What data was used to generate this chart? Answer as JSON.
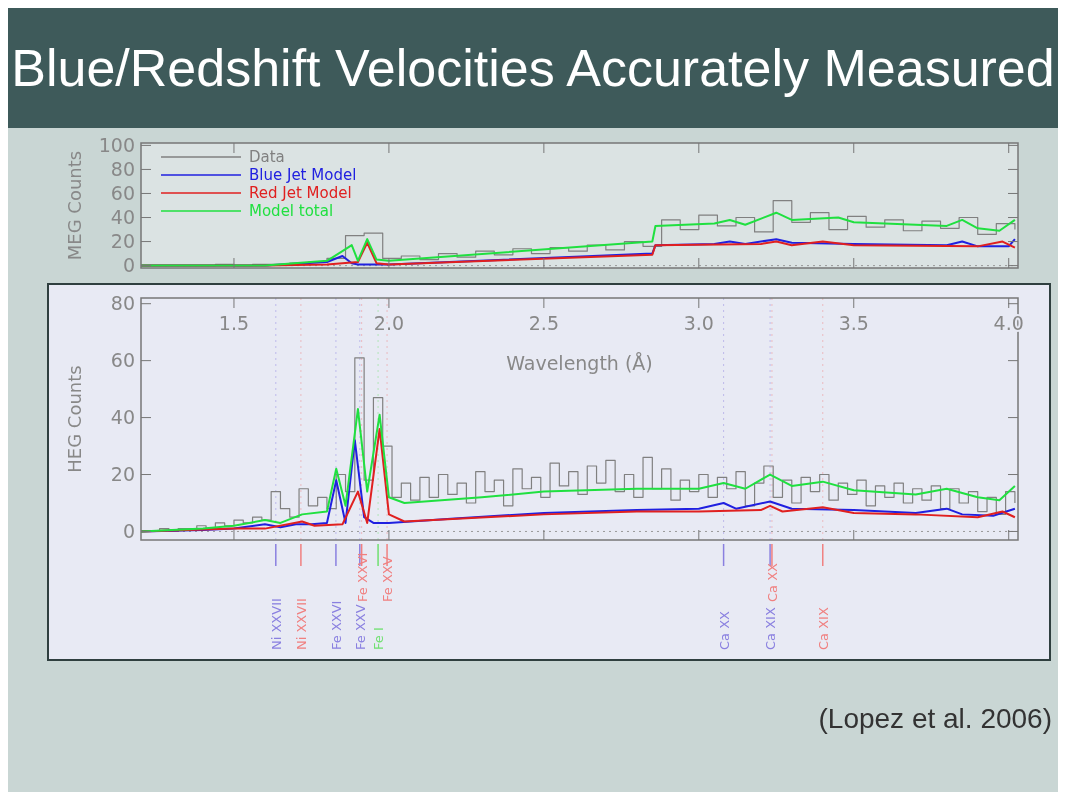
{
  "chart_data": [
    {
      "type": "step",
      "title": "Blue/Redshift Velocities Accurately Measured",
      "ylabel": "MEG Counts",
      "xlim": [
        1.2,
        4.03
      ],
      "ylim": [
        -2,
        102
      ],
      "xticks": [
        {
          "value": 1.5,
          "label": null
        },
        {
          "value": 2,
          "label": null
        },
        {
          "value": 2.5,
          "label": null
        },
        {
          "value": 3,
          "label": null
        },
        {
          "value": 3.5,
          "label": null
        },
        {
          "value": 4,
          "label": null
        }
      ],
      "yticks": [
        0,
        20,
        40,
        60,
        80,
        100
      ],
      "tick_labels": "y",
      "legend": "top left",
      "ref_lines": [
        {
          "axis": "y",
          "value": 0,
          "line_style": "dotted"
        }
      ],
      "series": [
        {
          "name": "Data",
          "color": "#808080",
          "x": [
            1.2,
            1.26,
            1.32,
            1.38,
            1.44,
            1.5,
            1.56,
            1.62,
            1.68,
            1.74,
            1.8,
            1.86,
            1.92,
            1.98,
            2.04,
            2.1,
            2.16,
            2.22,
            2.28,
            2.34,
            2.4,
            2.46,
            2.52,
            2.58,
            2.64,
            2.7,
            2.76,
            2.82,
            2.88,
            2.94,
            3.0,
            3.06,
            3.12,
            3.18,
            3.24,
            3.3,
            3.36,
            3.42,
            3.48,
            3.54,
            3.6,
            3.66,
            3.72,
            3.78,
            3.84,
            3.9,
            3.96,
            4.02
          ],
          "values": [
            0,
            0,
            0,
            0,
            1,
            0,
            1,
            1,
            2,
            3,
            6,
            25,
            27,
            6,
            8,
            5,
            10,
            7,
            12,
            9,
            14,
            10,
            15,
            12,
            17,
            13,
            20,
            16,
            38,
            30,
            42,
            33,
            40,
            28,
            54,
            36,
            44,
            30,
            41,
            32,
            38,
            29,
            37,
            31,
            40,
            26,
            35,
            30
          ]
        },
        {
          "name": "Blue Jet Model",
          "type": "line",
          "color": "#2020e0",
          "x": [
            1.2,
            1.6,
            1.8,
            1.85,
            1.88,
            1.9,
            2.0,
            2.85,
            2.86,
            3.05,
            3.1,
            3.15,
            3.25,
            3.3,
            3.5,
            3.8,
            3.85,
            3.9,
            4.0,
            4.02
          ],
          "values": [
            0,
            0,
            3,
            8,
            2,
            1,
            1,
            10,
            17,
            18,
            20,
            18,
            22,
            19,
            18,
            17,
            20,
            16,
            16,
            22
          ]
        },
        {
          "name": "Red Jet Model",
          "type": "line",
          "color": "#e02020",
          "x": [
            1.2,
            1.6,
            1.8,
            1.9,
            1.93,
            1.96,
            2.0,
            2.85,
            2.86,
            3.2,
            3.25,
            3.3,
            3.4,
            3.5,
            3.9,
            3.98,
            4.02
          ],
          "values": [
            0,
            0,
            1,
            3,
            19,
            2,
            1,
            9,
            17,
            18,
            20,
            17,
            20,
            17,
            16,
            20,
            15
          ]
        },
        {
          "name": "Model total",
          "type": "line",
          "color": "#20e040",
          "x": [
            1.2,
            1.6,
            1.8,
            1.85,
            1.88,
            1.9,
            1.93,
            1.96,
            2.0,
            2.85,
            2.86,
            3.05,
            3.1,
            3.15,
            3.25,
            3.3,
            3.45,
            3.5,
            3.8,
            3.85,
            3.9,
            3.97,
            4.02
          ],
          "values": [
            0,
            0,
            4,
            12,
            17,
            4,
            22,
            5,
            4,
            20,
            33,
            35,
            38,
            34,
            44,
            38,
            40,
            36,
            33,
            38,
            31,
            29,
            38
          ]
        }
      ]
    },
    {
      "type": "step",
      "xlabel": "Wavelength (Å)",
      "ylabel": "HEG Counts",
      "xlim": [
        1.2,
        4.03
      ],
      "ylim": [
        -3,
        82
      ],
      "xticks": [
        {
          "value": 1.5,
          "label": "1.5"
        },
        {
          "value": 2,
          "label": "2.0"
        },
        {
          "value": 2.5,
          "label": "2.5"
        },
        {
          "value": 3,
          "label": "3.0"
        },
        {
          "value": 3.5,
          "label": "3.5"
        },
        {
          "value": 4,
          "label": "4.0"
        }
      ],
      "yticks": [
        0,
        20,
        40,
        60,
        80
      ],
      "legend": false,
      "annotations": [
        "(Lopez et al. 2006)"
      ],
      "ref_lines": [
        {
          "axis": "y",
          "value": 0,
          "line_style": "dotted"
        },
        {
          "axis": "x",
          "value": 1.635,
          "label": "Ni XXVII",
          "color": "#8a80e0"
        },
        {
          "axis": "x",
          "value": 1.716,
          "label": "Ni XXVII",
          "color": "#f08080"
        },
        {
          "axis": "x",
          "value": 1.829,
          "label": "Fe XXVI",
          "color": "#8a80e0"
        },
        {
          "axis": "x",
          "value": 1.906,
          "label": "Fe XXV",
          "color": "#8a80e0"
        },
        {
          "axis": "x",
          "value": 1.912,
          "label": "Fe XXVI",
          "color": "#f08080"
        },
        {
          "axis": "x",
          "value": 1.965,
          "label": "Fe I",
          "color": "#70e070"
        },
        {
          "axis": "x",
          "value": 1.994,
          "label": "Fe XXV",
          "color": "#f08080"
        },
        {
          "axis": "x",
          "value": 3.08,
          "label": "Ca XX",
          "color": "#8a80e0"
        },
        {
          "axis": "x",
          "value": 3.23,
          "label": "Ca XIX",
          "color": "#8a80e0"
        },
        {
          "axis": "x",
          "value": 3.236,
          "label": "Ca XX",
          "color": "#f08080"
        },
        {
          "axis": "x",
          "value": 3.4,
          "label": "Ca XIX",
          "color": "#f08080"
        }
      ],
      "series": [
        {
          "color": "#808080",
          "x": [
            1.2,
            1.23,
            1.26,
            1.29,
            1.32,
            1.35,
            1.38,
            1.41,
            1.44,
            1.47,
            1.5,
            1.53,
            1.56,
            1.59,
            1.62,
            1.65,
            1.68,
            1.71,
            1.74,
            1.77,
            1.8,
            1.83,
            1.86,
            1.89,
            1.92,
            1.95,
            1.98,
            2.01,
            2.04,
            2.07,
            2.1,
            2.13,
            2.16,
            2.19,
            2.22,
            2.25,
            2.28,
            2.31,
            2.34,
            2.37,
            2.4,
            2.43,
            2.46,
            2.49,
            2.52,
            2.55,
            2.58,
            2.61,
            2.64,
            2.67,
            2.7,
            2.73,
            2.76,
            2.79,
            2.82,
            2.85,
            2.88,
            2.91,
            2.94,
            2.97,
            3.0,
            3.03,
            3.06,
            3.09,
            3.12,
            3.15,
            3.18,
            3.21,
            3.24,
            3.27,
            3.3,
            3.33,
            3.36,
            3.39,
            3.42,
            3.45,
            3.48,
            3.51,
            3.54,
            3.57,
            3.6,
            3.63,
            3.66,
            3.69,
            3.72,
            3.75,
            3.78,
            3.81,
            3.84,
            3.87,
            3.9,
            3.93,
            3.96,
            3.99,
            4.02
          ],
          "values": [
            0,
            0,
            1,
            0,
            1,
            1,
            2,
            1,
            3,
            2,
            4,
            3,
            5,
            4,
            14,
            8,
            5,
            15,
            9,
            12,
            8,
            20,
            14,
            61,
            18,
            47,
            30,
            12,
            17,
            11,
            19,
            12,
            20,
            13,
            17,
            10,
            21,
            14,
            18,
            9,
            22,
            15,
            19,
            12,
            24,
            16,
            21,
            13,
            23,
            17,
            25,
            14,
            20,
            12,
            26,
            15,
            22,
            11,
            18,
            14,
            20,
            12,
            19,
            15,
            21,
            9,
            17,
            23,
            12,
            18,
            10,
            19,
            14,
            20,
            11,
            17,
            13,
            18,
            9,
            16,
            12,
            17,
            10,
            15,
            11,
            16,
            8,
            15,
            10,
            14,
            7,
            12,
            6,
            14,
            10
          ]
        },
        {
          "type": "line",
          "color": "#2020e0",
          "x": [
            1.2,
            1.4,
            1.5,
            1.6,
            1.65,
            1.7,
            1.75,
            1.8,
            1.83,
            1.86,
            1.89,
            1.92,
            1.95,
            2.0,
            2.2,
            2.5,
            2.8,
            3.0,
            3.08,
            3.12,
            3.23,
            3.3,
            3.5,
            3.7,
            3.8,
            3.85,
            3.95,
            4.02
          ],
          "values": [
            0,
            0.5,
            1,
            2.5,
            1.5,
            2.5,
            2.5,
            3,
            18,
            3,
            32,
            5,
            3,
            3,
            4.5,
            6.5,
            7.5,
            8,
            10,
            8,
            10.5,
            8,
            7.5,
            6.5,
            8,
            6,
            5.5,
            8
          ]
        },
        {
          "type": "line",
          "color": "#e02020",
          "x": [
            1.2,
            1.5,
            1.6,
            1.72,
            1.76,
            1.85,
            1.9,
            1.93,
            1.97,
            2.0,
            2.05,
            2.5,
            2.8,
            3.0,
            3.2,
            3.23,
            3.27,
            3.4,
            3.5,
            3.7,
            3.9,
            3.98,
            4.02
          ],
          "values": [
            0,
            1,
            1,
            3.5,
            2,
            2.5,
            14,
            3,
            36,
            6,
            3.5,
            6,
            7,
            7,
            7.5,
            9,
            7,
            8.5,
            6.5,
            6,
            5,
            7,
            5
          ]
        },
        {
          "type": "line",
          "color": "#20e040",
          "x": [
            1.2,
            1.4,
            1.5,
            1.6,
            1.65,
            1.72,
            1.8,
            1.83,
            1.86,
            1.9,
            1.93,
            1.97,
            2.0,
            2.05,
            2.3,
            2.5,
            2.8,
            3.0,
            3.08,
            3.15,
            3.23,
            3.3,
            3.4,
            3.5,
            3.7,
            3.8,
            3.9,
            3.97,
            4.02
          ],
          "values": [
            0,
            1,
            2,
            4,
            3,
            6,
            7,
            22,
            9,
            43,
            14,
            41,
            12,
            10,
            12,
            14,
            15,
            15,
            17,
            15,
            20,
            16,
            17.5,
            14.5,
            13,
            15,
            12,
            11,
            16
          ]
        }
      ]
    }
  ]
}
